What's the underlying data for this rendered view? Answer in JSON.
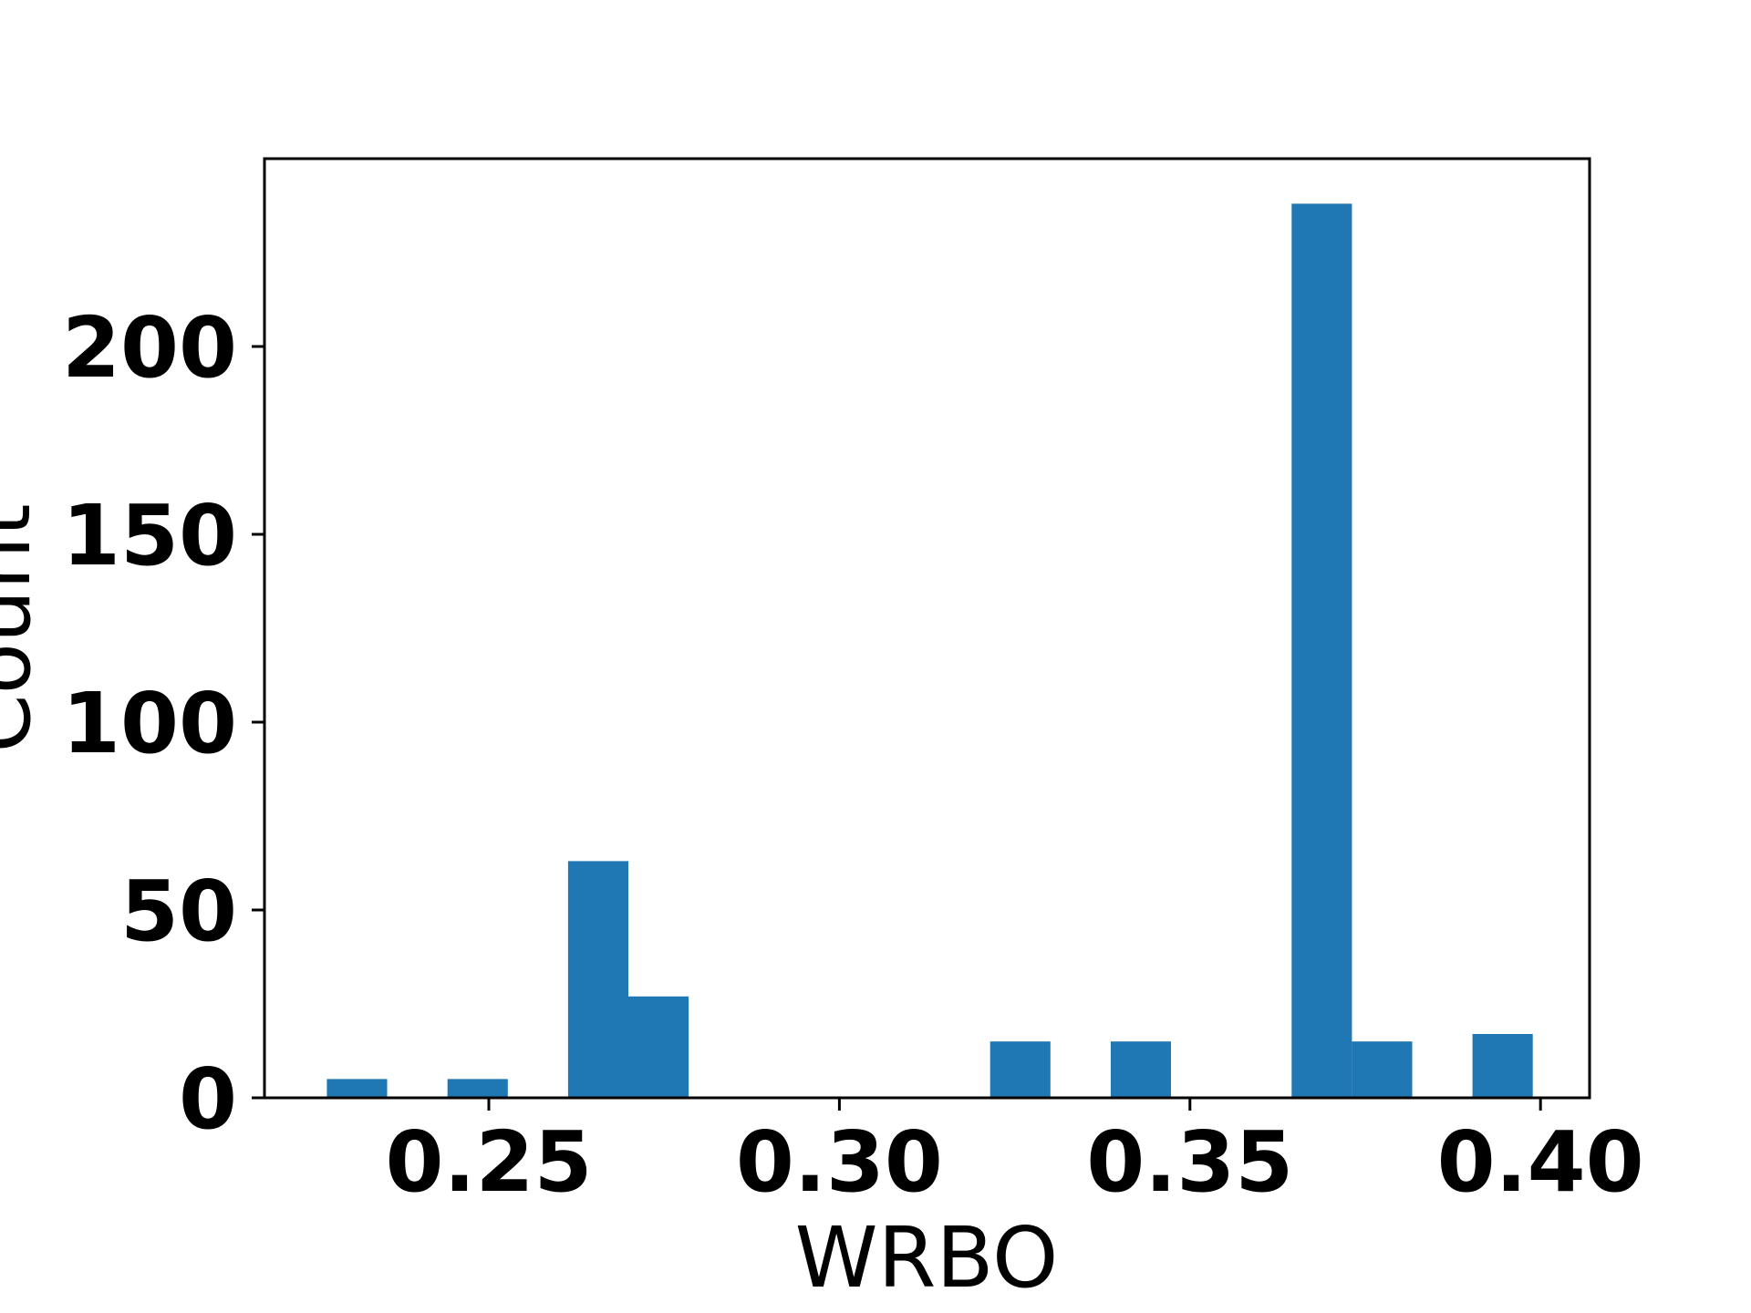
{
  "chart_data": {
    "type": "bar",
    "title": "",
    "xlabel": "WRBO",
    "ylabel": "Count",
    "xlim": [
      0.218,
      0.407
    ],
    "ylim": [
      0,
      250
    ],
    "xticks": [
      0.25,
      0.3,
      0.35,
      0.4
    ],
    "xtick_labels": [
      "0.25",
      "0.30",
      "0.35",
      "0.40"
    ],
    "yticks": [
      0,
      50,
      100,
      150,
      200
    ],
    "ytick_labels": [
      "0",
      "50",
      "100",
      "150",
      "200"
    ],
    "grid": false,
    "legend": null,
    "bar_color": "#1f77b4",
    "bins": [
      {
        "x0": 0.2269,
        "x1": 0.2355,
        "count": 5
      },
      {
        "x0": 0.2441,
        "x1": 0.2527,
        "count": 5
      },
      {
        "x0": 0.2613,
        "x1": 0.2699,
        "count": 63
      },
      {
        "x0": 0.2699,
        "x1": 0.2785,
        "count": 27
      },
      {
        "x0": 0.3215,
        "x1": 0.3301,
        "count": 15
      },
      {
        "x0": 0.3387,
        "x1": 0.3473,
        "count": 15
      },
      {
        "x0": 0.3645,
        "x1": 0.3731,
        "count": 238
      },
      {
        "x0": 0.3731,
        "x1": 0.3817,
        "count": 15
      },
      {
        "x0": 0.3903,
        "x1": 0.3989,
        "count": 17
      }
    ]
  }
}
